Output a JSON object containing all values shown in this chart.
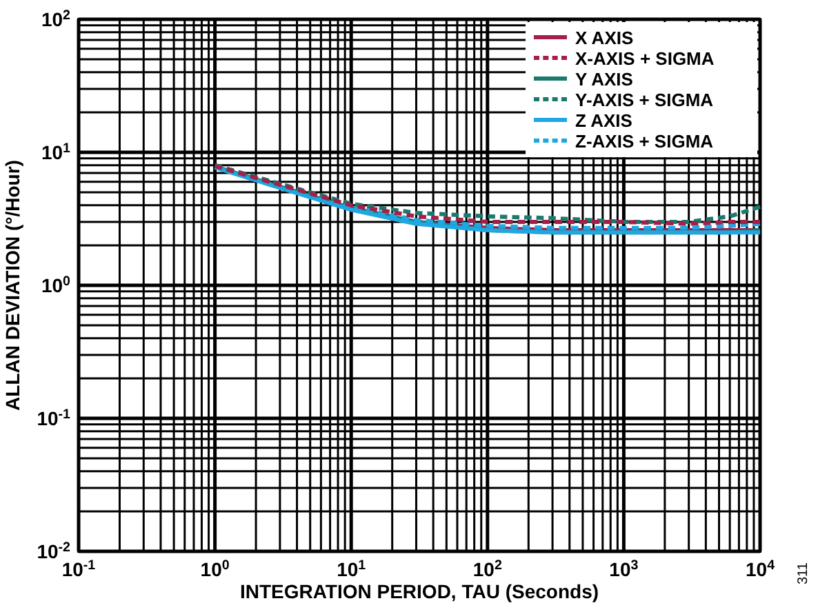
{
  "chart_data": {
    "type": "line",
    "xlabel": "INTEGRATION PERIOD, TAU (Seconds)",
    "ylabel": "ALLAN DEVIATION (°/Hour)",
    "log": "xy",
    "grid": true,
    "legend": "top right",
    "xlim": [
      0.1,
      10000
    ],
    "ylim": [
      0.01,
      100
    ],
    "xticks": [
      {
        "value": 0.1,
        "label": "10$^{-1}$"
      },
      {
        "value": 1,
        "label": "10$^{0}$"
      },
      {
        "value": 10,
        "label": "10$^{1}$"
      },
      {
        "value": 100,
        "label": "10$^{2}$"
      },
      {
        "value": 1000,
        "label": "10$^{3}$"
      },
      {
        "value": 10000,
        "label": "10$^{4}$"
      }
    ],
    "yticks": [
      {
        "value": 0.01,
        "label": "10$^{-2}$"
      },
      {
        "value": 0.1,
        "label": "10$^{-1}$"
      },
      {
        "value": 1,
        "label": "10$^{0}$"
      },
      {
        "value": 10,
        "label": "10$^{1}$"
      },
      {
        "value": 100,
        "label": "10$^{2}$"
      }
    ],
    "x": [
      1,
      3,
      10,
      30,
      100,
      300,
      1000,
      3000,
      6000,
      10000
    ],
    "series": [
      {
        "name": "X AXIS",
        "color": "#a3204a",
        "line_style": "solid",
        "values": [
          7.8,
          5.5,
          3.8,
          3.0,
          2.7,
          2.6,
          2.6,
          2.6,
          2.6,
          2.6
        ]
      },
      {
        "name": "X-AXIS + SIGMA",
        "color": "#a3204a",
        "line_style": "dashed",
        "values": [
          7.9,
          5.7,
          4.0,
          3.3,
          3.0,
          3.0,
          3.0,
          2.9,
          3.0,
          3.0
        ]
      },
      {
        "name": "Y AXIS",
        "color": "#1a7a6e",
        "line_style": "solid",
        "values": [
          7.8,
          5.5,
          3.8,
          3.0,
          2.6,
          2.5,
          2.5,
          2.5,
          2.5,
          2.6
        ]
      },
      {
        "name": "Y-AXIS + SIGMA",
        "color": "#1a7a6e",
        "line_style": "dashed",
        "values": [
          8.0,
          5.8,
          4.1,
          3.5,
          3.3,
          3.2,
          3.0,
          3.0,
          3.3,
          3.9
        ]
      },
      {
        "name": "Z AXIS",
        "color": "#1ea7e1",
        "line_style": "solid",
        "values": [
          7.7,
          5.4,
          3.7,
          2.9,
          2.6,
          2.5,
          2.5,
          2.5,
          2.5,
          2.5
        ]
      },
      {
        "name": "Z-AXIS + SIGMA",
        "color": "#1ea7e1",
        "line_style": "dashed",
        "values": [
          7.8,
          5.6,
          3.9,
          3.1,
          2.8,
          2.7,
          2.7,
          2.7,
          2.8,
          2.9
        ]
      }
    ],
    "annotations": [
      "311"
    ]
  }
}
